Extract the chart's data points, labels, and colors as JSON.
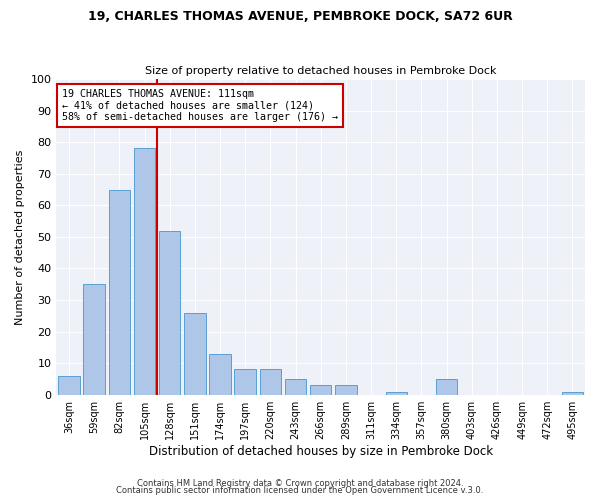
{
  "title": "19, CHARLES THOMAS AVENUE, PEMBROKE DOCK, SA72 6UR",
  "subtitle": "Size of property relative to detached houses in Pembroke Dock",
  "xlabel": "Distribution of detached houses by size in Pembroke Dock",
  "ylabel": "Number of detached properties",
  "categories": [
    "36sqm",
    "59sqm",
    "82sqm",
    "105sqm",
    "128sqm",
    "151sqm",
    "174sqm",
    "197sqm",
    "220sqm",
    "243sqm",
    "266sqm",
    "289sqm",
    "311sqm",
    "334sqm",
    "357sqm",
    "380sqm",
    "403sqm",
    "426sqm",
    "449sqm",
    "472sqm",
    "495sqm"
  ],
  "values": [
    6,
    35,
    65,
    78,
    52,
    26,
    13,
    8,
    8,
    5,
    3,
    3,
    0,
    1,
    0,
    5,
    0,
    0,
    0,
    0,
    1
  ],
  "bar_color": "#aec6e8",
  "bar_edge_color": "#5a9fd4",
  "vline_color": "#cc0000",
  "annotation_lines": [
    "19 CHARLES THOMAS AVENUE: 111sqm",
    "← 41% of detached houses are smaller (124)",
    "58% of semi-detached houses are larger (176) →"
  ],
  "annotation_box_edge": "#cc0000",
  "ylim": [
    0,
    100
  ],
  "yticks": [
    0,
    10,
    20,
    30,
    40,
    50,
    60,
    70,
    80,
    90,
    100
  ],
  "footer_lines": [
    "Contains HM Land Registry data © Crown copyright and database right 2024.",
    "Contains public sector information licensed under the Open Government Licence v.3.0."
  ],
  "bg_color": "#eef2f8",
  "fig_bg_color": "#ffffff",
  "grid_color": "#ffffff"
}
